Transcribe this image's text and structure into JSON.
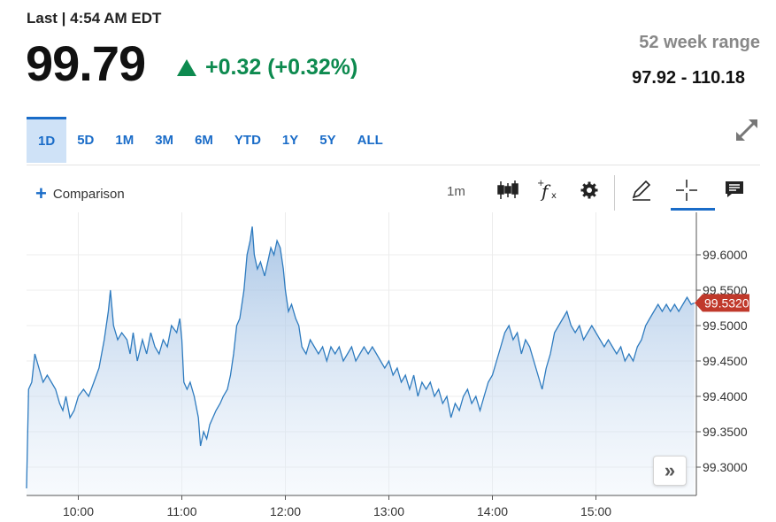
{
  "quote": {
    "last_label": "Last | 4:54 AM EDT",
    "price": "99.79",
    "change": "+0.32 (+0.32%)",
    "week52_label": "52 week range",
    "week52_value": "97.92 - 110.18"
  },
  "colors": {
    "accent": "#1a6cc8",
    "up": "#0d8a4f",
    "badge": "#c0392b",
    "line": "#2e7bbf"
  },
  "tabs": [
    "1D",
    "5D",
    "1M",
    "3M",
    "6M",
    "YTD",
    "1Y",
    "5Y",
    "ALL"
  ],
  "active_tab": "1D",
  "toolbar": {
    "comparison_label": "Comparison",
    "interval": "1m",
    "icons": [
      "candlestick-icon",
      "function-icon",
      "settings-icon",
      "pencil-icon",
      "crosshair-icon",
      "comment-icon"
    ]
  },
  "chart_data": {
    "type": "area",
    "x_ticks": [
      "10:00",
      "11:00",
      "12:00",
      "13:00",
      "14:00",
      "15:00"
    ],
    "y_ticks": [
      "99.3000",
      "99.3500",
      "99.4000",
      "99.4500",
      "99.5000",
      "99.5500",
      "99.6000"
    ],
    "ylim": [
      99.26,
      99.66
    ],
    "xlim": [
      9.5,
      15.97
    ],
    "last_value_label": "99.5320",
    "grid": true,
    "points": [
      [
        9.5,
        99.27
      ],
      [
        9.52,
        99.41
      ],
      [
        9.55,
        99.42
      ],
      [
        9.58,
        99.46
      ],
      [
        9.62,
        99.44
      ],
      [
        9.66,
        99.42
      ],
      [
        9.7,
        99.43
      ],
      [
        9.74,
        99.42
      ],
      [
        9.78,
        99.41
      ],
      [
        9.82,
        99.39
      ],
      [
        9.85,
        99.38
      ],
      [
        9.88,
        99.4
      ],
      [
        9.92,
        99.37
      ],
      [
        9.96,
        99.38
      ],
      [
        10.0,
        99.4
      ],
      [
        10.05,
        99.41
      ],
      [
        10.1,
        99.4
      ],
      [
        10.15,
        99.42
      ],
      [
        10.2,
        99.44
      ],
      [
        10.25,
        99.48
      ],
      [
        10.29,
        99.52
      ],
      [
        10.31,
        99.55
      ],
      [
        10.34,
        99.5
      ],
      [
        10.38,
        99.48
      ],
      [
        10.42,
        99.49
      ],
      [
        10.47,
        99.48
      ],
      [
        10.5,
        99.46
      ],
      [
        10.53,
        99.49
      ],
      [
        10.57,
        99.45
      ],
      [
        10.62,
        99.48
      ],
      [
        10.66,
        99.46
      ],
      [
        10.7,
        99.49
      ],
      [
        10.74,
        99.47
      ],
      [
        10.78,
        99.46
      ],
      [
        10.82,
        99.48
      ],
      [
        10.86,
        99.47
      ],
      [
        10.9,
        99.5
      ],
      [
        10.95,
        99.49
      ],
      [
        10.98,
        99.51
      ],
      [
        11.0,
        99.48
      ],
      [
        11.02,
        99.42
      ],
      [
        11.05,
        99.41
      ],
      [
        11.08,
        99.42
      ],
      [
        11.12,
        99.4
      ],
      [
        11.16,
        99.37
      ],
      [
        11.18,
        99.33
      ],
      [
        11.21,
        99.35
      ],
      [
        11.24,
        99.34
      ],
      [
        11.27,
        99.36
      ],
      [
        11.3,
        99.37
      ],
      [
        11.33,
        99.38
      ],
      [
        11.37,
        99.39
      ],
      [
        11.4,
        99.4
      ],
      [
        11.44,
        99.41
      ],
      [
        11.47,
        99.43
      ],
      [
        11.5,
        99.46
      ],
      [
        11.53,
        99.5
      ],
      [
        11.56,
        99.51
      ],
      [
        11.6,
        99.55
      ],
      [
        11.63,
        99.6
      ],
      [
        11.66,
        99.62
      ],
      [
        11.68,
        99.64
      ],
      [
        11.7,
        99.6
      ],
      [
        11.73,
        99.58
      ],
      [
        11.76,
        99.59
      ],
      [
        11.8,
        99.57
      ],
      [
        11.83,
        99.59
      ],
      [
        11.86,
        99.61
      ],
      [
        11.89,
        99.6
      ],
      [
        11.92,
        99.62
      ],
      [
        11.95,
        99.61
      ],
      [
        11.98,
        99.58
      ],
      [
        12.0,
        99.55
      ],
      [
        12.03,
        99.52
      ],
      [
        12.06,
        99.53
      ],
      [
        12.1,
        99.51
      ],
      [
        12.13,
        99.5
      ],
      [
        12.16,
        99.47
      ],
      [
        12.2,
        99.46
      ],
      [
        12.24,
        99.48
      ],
      [
        12.28,
        99.47
      ],
      [
        12.32,
        99.46
      ],
      [
        12.36,
        99.47
      ],
      [
        12.4,
        99.45
      ],
      [
        12.44,
        99.47
      ],
      [
        12.48,
        99.46
      ],
      [
        12.52,
        99.47
      ],
      [
        12.56,
        99.45
      ],
      [
        12.6,
        99.46
      ],
      [
        12.64,
        99.47
      ],
      [
        12.68,
        99.45
      ],
      [
        12.72,
        99.46
      ],
      [
        12.76,
        99.47
      ],
      [
        12.8,
        99.46
      ],
      [
        12.84,
        99.47
      ],
      [
        12.88,
        99.46
      ],
      [
        12.92,
        99.45
      ],
      [
        12.96,
        99.44
      ],
      [
        13.0,
        99.45
      ],
      [
        13.04,
        99.43
      ],
      [
        13.08,
        99.44
      ],
      [
        13.12,
        99.42
      ],
      [
        13.16,
        99.43
      ],
      [
        13.2,
        99.41
      ],
      [
        13.24,
        99.43
      ],
      [
        13.28,
        99.4
      ],
      [
        13.32,
        99.42
      ],
      [
        13.36,
        99.41
      ],
      [
        13.4,
        99.42
      ],
      [
        13.44,
        99.4
      ],
      [
        13.48,
        99.41
      ],
      [
        13.52,
        99.39
      ],
      [
        13.56,
        99.4
      ],
      [
        13.6,
        99.37
      ],
      [
        13.64,
        99.39
      ],
      [
        13.68,
        99.38
      ],
      [
        13.72,
        99.4
      ],
      [
        13.76,
        99.41
      ],
      [
        13.8,
        99.39
      ],
      [
        13.84,
        99.4
      ],
      [
        13.88,
        99.38
      ],
      [
        13.92,
        99.4
      ],
      [
        13.96,
        99.42
      ],
      [
        14.0,
        99.43
      ],
      [
        14.04,
        99.45
      ],
      [
        14.08,
        99.47
      ],
      [
        14.12,
        99.49
      ],
      [
        14.16,
        99.5
      ],
      [
        14.2,
        99.48
      ],
      [
        14.24,
        99.49
      ],
      [
        14.28,
        99.46
      ],
      [
        14.32,
        99.48
      ],
      [
        14.36,
        99.47
      ],
      [
        14.4,
        99.45
      ],
      [
        14.44,
        99.43
      ],
      [
        14.48,
        99.41
      ],
      [
        14.52,
        99.44
      ],
      [
        14.56,
        99.46
      ],
      [
        14.6,
        99.49
      ],
      [
        14.64,
        99.5
      ],
      [
        14.68,
        99.51
      ],
      [
        14.72,
        99.52
      ],
      [
        14.76,
        99.5
      ],
      [
        14.8,
        99.49
      ],
      [
        14.84,
        99.5
      ],
      [
        14.88,
        99.48
      ],
      [
        14.92,
        99.49
      ],
      [
        14.96,
        99.5
      ],
      [
        15.0,
        99.49
      ],
      [
        15.04,
        99.48
      ],
      [
        15.08,
        99.47
      ],
      [
        15.12,
        99.48
      ],
      [
        15.16,
        99.47
      ],
      [
        15.2,
        99.46
      ],
      [
        15.24,
        99.47
      ],
      [
        15.28,
        99.45
      ],
      [
        15.32,
        99.46
      ],
      [
        15.36,
        99.45
      ],
      [
        15.4,
        99.47
      ],
      [
        15.44,
        99.48
      ],
      [
        15.48,
        99.5
      ],
      [
        15.52,
        99.51
      ],
      [
        15.56,
        99.52
      ],
      [
        15.6,
        99.53
      ],
      [
        15.64,
        99.52
      ],
      [
        15.68,
        99.53
      ],
      [
        15.72,
        99.52
      ],
      [
        15.76,
        99.53
      ],
      [
        15.8,
        99.52
      ],
      [
        15.84,
        99.53
      ],
      [
        15.88,
        99.54
      ],
      [
        15.92,
        99.53
      ],
      [
        15.95,
        99.532
      ]
    ]
  }
}
